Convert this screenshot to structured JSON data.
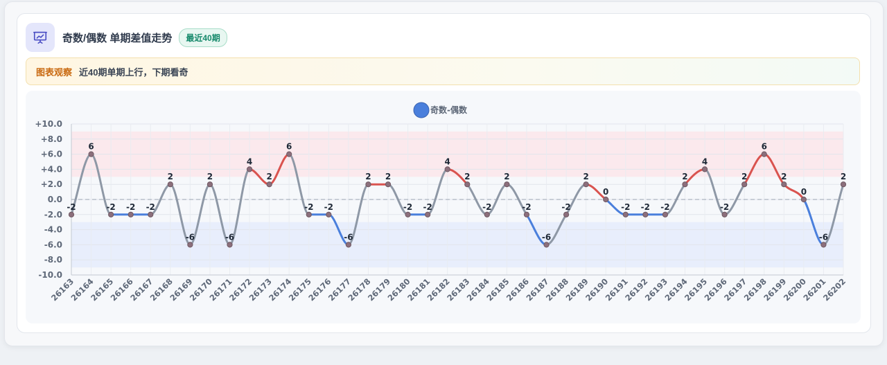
{
  "header": {
    "title": "奇数/偶数 单期差值走势",
    "badge": "最近40期",
    "icon": "presentation-chart-icon"
  },
  "insight": {
    "label": "图表观察",
    "text": "近40期单期上行，下期看奇"
  },
  "colors": {
    "up": "#d9534f",
    "down": "#4a7fdc",
    "flat": "#8e98a6",
    "legend": "#4a7fdc",
    "upperBand": "#fbe6ea",
    "lowerBand": "#e5ecfb"
  },
  "chart_data": {
    "type": "line",
    "legend": [
      "奇数-偶数"
    ],
    "legend_position": "top-center",
    "ylim": [
      -10,
      10
    ],
    "yticks": [
      "+10.0",
      "+8.0",
      "+6.0",
      "+4.0",
      "+2.0",
      "0.0",
      "-2.0",
      "-4.0",
      "-6.0",
      "-8.0",
      "-10.0"
    ],
    "grid": true,
    "bands": [
      {
        "from": 3,
        "to": 9,
        "color": "upper"
      },
      {
        "from": -9,
        "to": -3,
        "color": "lower"
      }
    ],
    "categories": [
      "26163",
      "26164",
      "26165",
      "26166",
      "26167",
      "26168",
      "26169",
      "26170",
      "26171",
      "26172",
      "26173",
      "26174",
      "26175",
      "26176",
      "26177",
      "26178",
      "26179",
      "26180",
      "26181",
      "26182",
      "26183",
      "26184",
      "26185",
      "26186",
      "26187",
      "26188",
      "26189",
      "26190",
      "26191",
      "26192",
      "26193",
      "26194",
      "26195",
      "26196",
      "26197",
      "26198",
      "26199",
      "26200",
      "26201",
      "26202"
    ],
    "series": [
      {
        "name": "奇数-偶数",
        "values": [
          -2,
          6,
          -2,
          -2,
          -2,
          2,
          -6,
          2,
          -6,
          4,
          2,
          6,
          -2,
          -2,
          -6,
          2,
          2,
          -2,
          -2,
          4,
          2,
          -2,
          2,
          -2,
          -6,
          -2,
          2,
          0,
          -2,
          -2,
          -2,
          2,
          4,
          -2,
          2,
          6,
          2,
          0,
          -6,
          2
        ]
      }
    ]
  }
}
